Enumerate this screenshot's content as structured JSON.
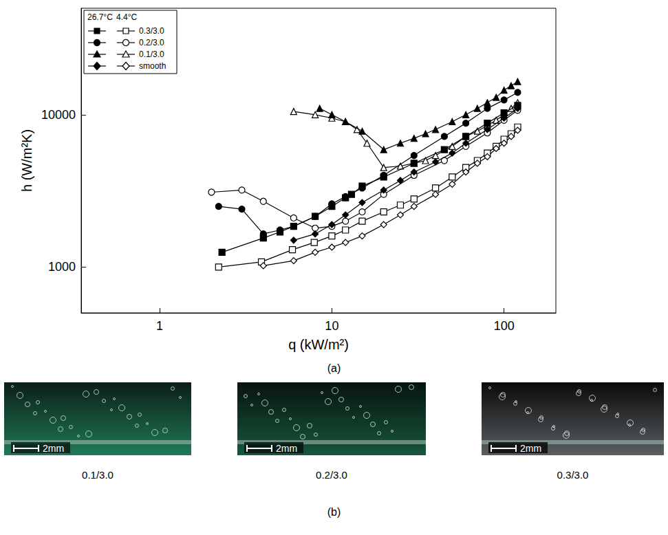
{
  "chart_data": {
    "type": "line",
    "x_label": "q (kW/m²)",
    "y_label": "h (W/m²K)",
    "log": true,
    "grid": false,
    "legend": "upper left",
    "legend_columns": [
      "26.7°C",
      "4.4°C"
    ],
    "xlim": [
      0.35,
      200
    ],
    "xticks": [
      1,
      10,
      100
    ],
    "ylim": [
      500,
      50000
    ],
    "yticks": [
      1000,
      10000
    ],
    "series": [
      {
        "name": "0.3/3.0",
        "column": "26.7°C",
        "color": "#000000",
        "marker": "filled_square",
        "line_style": "solid",
        "x": [
          2.3,
          4,
          5,
          6,
          8,
          10,
          12,
          13,
          15,
          20,
          30,
          45,
          60,
          80,
          100,
          120
        ],
        "values": [
          1250,
          1550,
          1700,
          1850,
          2150,
          2500,
          2850,
          3000,
          3400,
          3900,
          4800,
          5900,
          7200,
          8800,
          10300,
          11500
        ]
      },
      {
        "name": "0.2/3.0",
        "column": "26.7°C",
        "color": "#000000",
        "marker": "filled_circle",
        "line_style": "solid",
        "x": [
          2.2,
          3,
          4,
          5,
          6,
          8,
          10,
          12,
          15,
          20,
          30,
          45,
          60,
          80,
          100,
          120
        ],
        "values": [
          2500,
          2400,
          1650,
          1750,
          1850,
          2150,
          2600,
          2900,
          3300,
          4000,
          5400,
          7200,
          8800,
          11000,
          12500,
          14000
        ]
      },
      {
        "name": "0.1/3.0",
        "column": "26.7°C",
        "color": "#000000",
        "marker": "filled_triangle",
        "line_style": "solid",
        "x": [
          8.5,
          10,
          12,
          15,
          20,
          25,
          30,
          35,
          40,
          50,
          60,
          70,
          80,
          90,
          100,
          110,
          120
        ],
        "values": [
          11000,
          10000,
          9000,
          7800,
          5900,
          6500,
          7000,
          7500,
          8000,
          9000,
          10000,
          11000,
          12000,
          13000,
          14500,
          15500,
          16500
        ]
      },
      {
        "name": "smooth",
        "column": "26.7°C",
        "color": "#000000",
        "marker": "filled_diamond",
        "line_style": "solid",
        "x": [
          6,
          8,
          10,
          12,
          15,
          20,
          25,
          30,
          40,
          50,
          60,
          80,
          100,
          120
        ],
        "values": [
          1500,
          1650,
          1900,
          2200,
          2650,
          3200,
          3700,
          4200,
          4900,
          5600,
          6500,
          8000,
          9500,
          11000
        ]
      },
      {
        "name": "0.3/3.0",
        "column": "4.4°C",
        "color": "#000000",
        "marker": "open_square",
        "line_style": "solid",
        "x": [
          2.2,
          3.9,
          5.9,
          7.9,
          10,
          12,
          15,
          20,
          25,
          30,
          40,
          50,
          60,
          70,
          80,
          90,
          100,
          110,
          120
        ],
        "values": [
          1000,
          1080,
          1300,
          1450,
          1600,
          1750,
          2000,
          2300,
          2550,
          2800,
          3300,
          3900,
          4500,
          5000,
          5600,
          6200,
          6900,
          7500,
          8300
        ]
      },
      {
        "name": "0.2/3.0",
        "column": "4.4°C",
        "color": "#000000",
        "marker": "open_circle",
        "line_style": "solid",
        "x": [
          2,
          3,
          4,
          6,
          8,
          10,
          12,
          15,
          20,
          30,
          45,
          60,
          80,
          100,
          120
        ],
        "values": [
          3100,
          3200,
          2700,
          2100,
          1800,
          1850,
          2000,
          2300,
          3000,
          4000,
          5000,
          6200,
          7600,
          9200,
          10700
        ]
      },
      {
        "name": "0.1/3.0",
        "column": "4.4°C",
        "color": "#000000",
        "marker": "open_triangle",
        "line_style": "solid",
        "x": [
          6,
          8,
          10,
          12,
          14,
          16,
          20,
          25,
          30,
          35,
          40,
          50,
          60,
          70,
          80,
          90,
          100,
          110,
          120
        ],
        "values": [
          10500,
          10000,
          9500,
          9000,
          8000,
          6500,
          4500,
          4600,
          4800,
          5000,
          5400,
          6200,
          7200,
          7800,
          8500,
          9200,
          10000,
          11000,
          12000
        ]
      },
      {
        "name": "smooth",
        "column": "4.4°C",
        "color": "#000000",
        "marker": "open_diamond",
        "line_style": "solid",
        "x": [
          4,
          6,
          8,
          10,
          12,
          15,
          20,
          25,
          30,
          40,
          50,
          60,
          70,
          80,
          90,
          100,
          110,
          120
        ],
        "values": [
          1020,
          1100,
          1250,
          1350,
          1450,
          1600,
          1900,
          2200,
          2500,
          3000,
          3500,
          4200,
          4800,
          5300,
          6000,
          6500,
          7200,
          7900
        ]
      }
    ]
  },
  "figure": {
    "panel_a": "(a)",
    "panel_b": "(b)",
    "photos": [
      {
        "label": "0.1/3.0",
        "scale_bar": "2mm"
      },
      {
        "label": "0.2/3.0",
        "scale_bar": "2mm"
      },
      {
        "label": "0.3/3.0",
        "scale_bar": "2mm"
      }
    ]
  }
}
